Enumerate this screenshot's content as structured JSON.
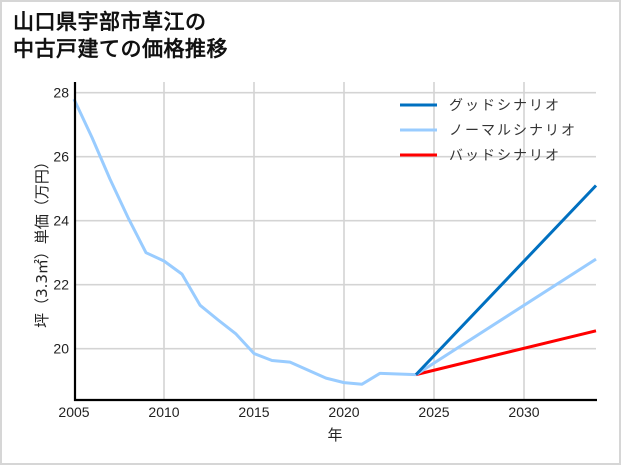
{
  "title_lines": [
    "山口県宇部市草江の",
    "中古戸建ての価格推移"
  ],
  "chart_data": {
    "type": "line",
    "title": "山口県宇部市草江の中古戸建ての価格推移",
    "xlabel": "年",
    "ylabel": "坪（3.3㎡）単価（万円）",
    "xlim": [
      2005,
      2034
    ],
    "ylim": [
      18.4,
      28.3
    ],
    "x_ticks": [
      2005,
      2010,
      2015,
      2020,
      2025,
      2030
    ],
    "y_ticks": [
      20,
      22,
      24,
      26,
      28
    ],
    "grid": true,
    "legend_position": "upper right",
    "series": [
      {
        "name": "ノーマルシナリオ",
        "color": "#99ccff",
        "x": [
          2005,
          2006,
          2007,
          2008,
          2009,
          2010,
          2011,
          2012,
          2013,
          2014,
          2015,
          2016,
          2017,
          2018,
          2019,
          2020,
          2021,
          2022,
          2023,
          2024
        ],
        "values": [
          27.8,
          26.6,
          25.3,
          24.1,
          23.0,
          22.74,
          22.33,
          21.36,
          20.9,
          20.46,
          19.85,
          19.63,
          19.58,
          19.33,
          19.08,
          18.94,
          18.89,
          19.23,
          19.21,
          19.19
        ]
      },
      {
        "name": "グッドシナリオ",
        "color": "#0070c0",
        "x": [
          2024,
          2034
        ],
        "values": [
          19.19,
          25.1
        ]
      },
      {
        "name": "ノーマルシナリオ",
        "color": "#99ccff",
        "x": [
          2024,
          2034
        ],
        "values": [
          19.19,
          22.8
        ]
      },
      {
        "name": "バッドシナリオ",
        "color": "#ff0000",
        "x": [
          2024,
          2034
        ],
        "values": [
          19.19,
          20.56
        ]
      }
    ]
  },
  "legend": [
    {
      "label": "グッドシナリオ",
      "color": "#0070c0"
    },
    {
      "label": "ノーマルシナリオ",
      "color": "#99ccff"
    },
    {
      "label": "バッドシナリオ",
      "color": "#ff0000"
    }
  ]
}
